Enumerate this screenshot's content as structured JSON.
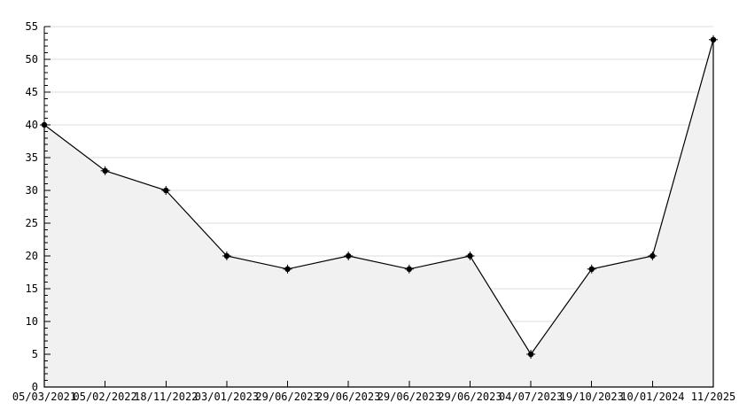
{
  "chart_data": {
    "type": "area",
    "title": "",
    "xlabel": "",
    "ylabel": "",
    "categories": [
      "05/03/2021",
      "05/02/2022",
      "18/11/2022",
      "03/01/2023",
      "29/06/2023",
      "29/06/2023",
      "29/06/2023",
      "29/06/2023",
      "04/07/2023",
      "19/10/2023",
      "10/01/2024",
      "11/2025"
    ],
    "values": [
      40,
      33,
      30,
      20,
      18,
      20,
      18,
      20,
      5,
      18,
      20,
      53
    ],
    "ylim": [
      0,
      55
    ],
    "ytick_major": 5,
    "ytick_minor": 1,
    "grid": "horizontal-major",
    "legend": "none",
    "colors": {
      "line": "#000000",
      "marker": "#000000",
      "area_fill": "#f1f1f1",
      "grid": "#dcdcdc",
      "axis": "#000000",
      "label": "#000000",
      "background": "#ffffff"
    }
  }
}
